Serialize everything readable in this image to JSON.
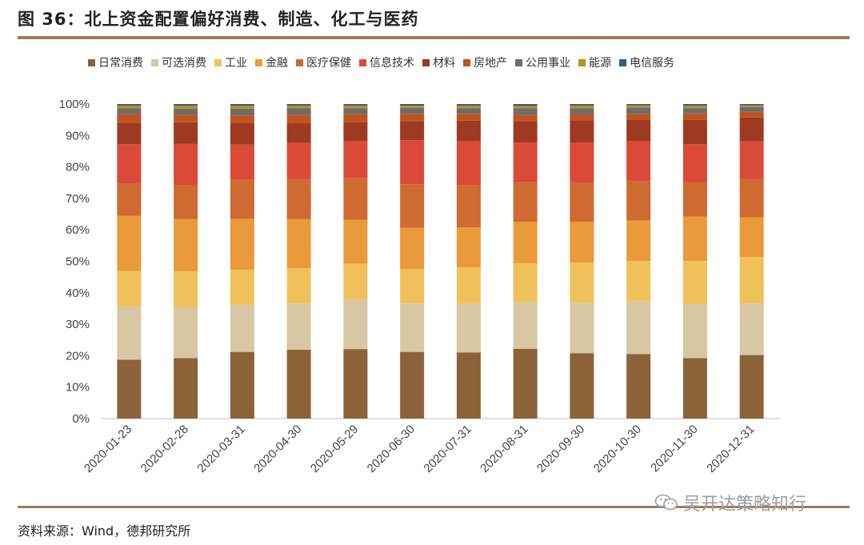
{
  "header": {
    "title": "图 36：北上资金配置偏好消费、制造、化工与医药"
  },
  "footer": {
    "source": "资料来源：Wind，德邦研究所",
    "watermark": "吴开达策略知行"
  },
  "chart_data": {
    "type": "bar",
    "stacked": true,
    "title": "",
    "xlabel": "",
    "ylabel": "",
    "ylim": [
      0,
      100
    ],
    "yticks": [
      "0%",
      "10%",
      "20%",
      "30%",
      "40%",
      "50%",
      "60%",
      "70%",
      "80%",
      "90%",
      "100%"
    ],
    "legend_position": "top",
    "categories": [
      "2020-01-23",
      "2020-02-28",
      "2020-03-31",
      "2020-04-30",
      "2020-05-29",
      "2020-06-30",
      "2020-07-31",
      "2020-08-31",
      "2020-09-30",
      "2020-10-30",
      "2020-11-30",
      "2020-12-31"
    ],
    "series": [
      {
        "name": "日常消费",
        "color": "#8c6239",
        "values": [
          18.7,
          19.2,
          21.2,
          21.9,
          22.1,
          21.2,
          21.0,
          22.2,
          20.8,
          20.5,
          19.2,
          20.2
        ]
      },
      {
        "name": "可选消费",
        "color": "#d7c7a3",
        "values": [
          17.0,
          16.3,
          15.0,
          14.7,
          15.8,
          15.4,
          15.5,
          14.8,
          16.0,
          16.7,
          17.2,
          16.4
        ]
      },
      {
        "name": "工业",
        "color": "#f0c15a",
        "values": [
          11.2,
          11.3,
          11.1,
          11.2,
          11.3,
          10.9,
          11.6,
          12.3,
          12.8,
          12.9,
          13.7,
          14.8
        ]
      },
      {
        "name": "金融",
        "color": "#ea9a3a",
        "values": [
          17.6,
          16.6,
          16.2,
          15.6,
          14.0,
          13.2,
          12.7,
          13.2,
          13.0,
          12.9,
          14.1,
          12.6
        ]
      },
      {
        "name": "医疗保健",
        "color": "#cf6a31",
        "values": [
          10.3,
          10.9,
          12.5,
          12.7,
          13.3,
          13.8,
          13.4,
          12.6,
          12.3,
          12.5,
          11.0,
          12.1
        ]
      },
      {
        "name": "信息技术",
        "color": "#db4a37",
        "values": [
          12.4,
          13.0,
          11.1,
          11.5,
          11.8,
          14.0,
          13.9,
          12.6,
          12.8,
          12.7,
          12.0,
          12.0
        ]
      },
      {
        "name": "材料",
        "color": "#9e3a22",
        "values": [
          6.8,
          6.9,
          6.9,
          6.3,
          6.0,
          6.1,
          6.6,
          6.9,
          7.1,
          6.9,
          7.8,
          7.6
        ]
      },
      {
        "name": "房地产",
        "color": "#c0541f",
        "values": [
          2.8,
          2.4,
          2.4,
          2.7,
          2.5,
          2.3,
          2.2,
          2.0,
          1.9,
          1.8,
          2.0,
          1.8
        ]
      },
      {
        "name": "公用事业",
        "color": "#6d6d6d",
        "values": [
          1.8,
          1.9,
          2.1,
          2.0,
          1.9,
          1.9,
          1.8,
          2.0,
          1.9,
          2.0,
          1.7,
          1.5
        ]
      },
      {
        "name": "能源",
        "color": "#b8901a",
        "values": [
          0.9,
          1.0,
          1.0,
          0.9,
          0.8,
          0.7,
          0.8,
          0.8,
          0.9,
          0.7,
          0.8,
          0.6
        ]
      },
      {
        "name": "电信服务",
        "color": "#2e5b8a",
        "values": [
          0.5,
          0.5,
          0.5,
          0.5,
          0.5,
          0.5,
          0.5,
          0.6,
          0.5,
          0.4,
          0.5,
          0.4
        ]
      }
    ]
  }
}
